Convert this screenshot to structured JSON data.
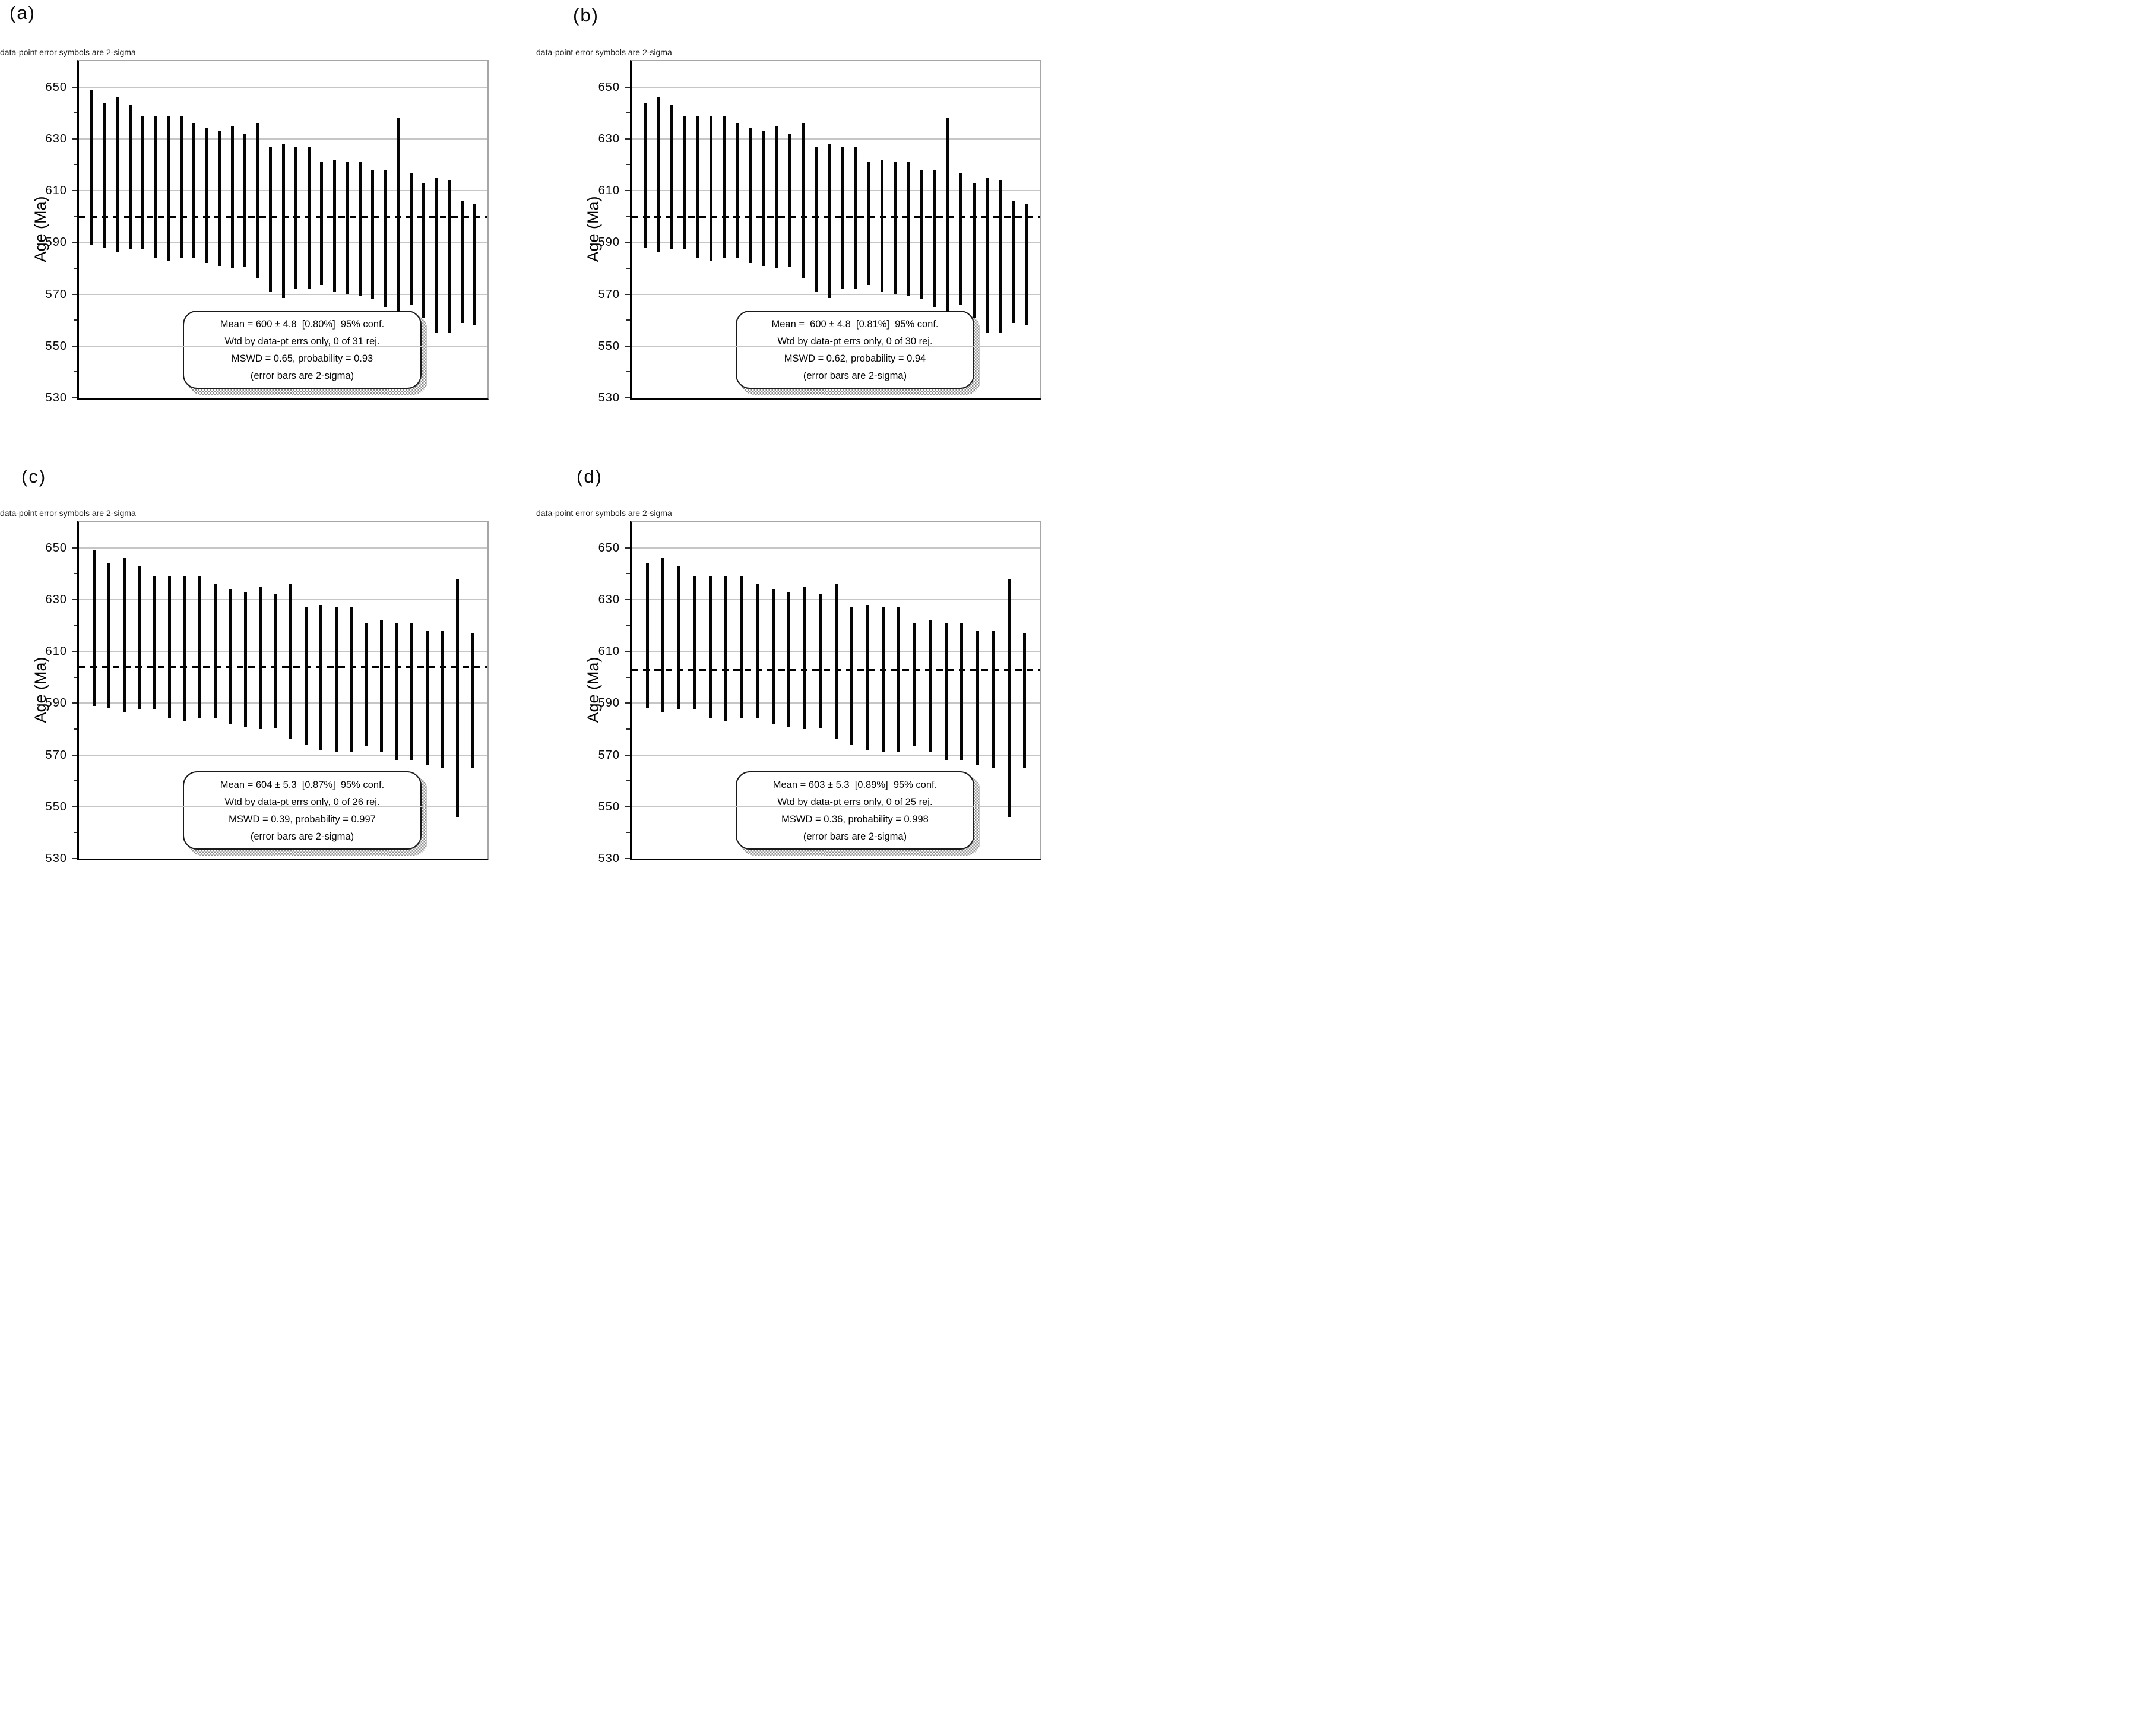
{
  "figure": {
    "annotation": "data-point error symbols are 2-sigma",
    "y_axis": {
      "title": "Age (Ma)",
      "range": [
        530,
        660
      ],
      "major_ticks": [
        650,
        630,
        610,
        590,
        570,
        550,
        530
      ],
      "minor_ticks": [
        640,
        620,
        600,
        580,
        560,
        540
      ]
    }
  },
  "panels": [
    {
      "label": "(a)",
      "stats": {
        "line1": "Mean = 600 ± 4.8  [0.80%]  95% conf.",
        "line2": "Wtd by data-pt errs only, 0 of 31 rej.",
        "line3": "MSWD = 0.65, probability = 0.93",
        "line4": "(error bars are 2-sigma)"
      }
    },
    {
      "label": "(b)",
      "stats": {
        "line1": "Mean =  600 ± 4.8  [0.81%]  95% conf.",
        "line2": "Wtd by data-pt errs only, 0 of 30 rej.",
        "line3": "MSWD = 0.62, probability = 0.94",
        "line4": "(error bars are 2-sigma)"
      }
    },
    {
      "label": "(c)",
      "stats": {
        "line1": "Mean = 604 ± 5.3  [0.87%]  95% conf.",
        "line2": "Wtd by data-pt errs only, 0 of 26 rej.",
        "line3": "MSWD = 0.39, probability = 0.997",
        "line4": "(error bars are 2-sigma)"
      }
    },
    {
      "label": "(d)",
      "stats": {
        "line1": "Mean = 603 ± 5.3  [0.89%]  95% conf.",
        "line2": "Wtd by data-pt errs only, 0 of 25 rej.",
        "line3": "MSWD = 0.36, probability = 0.998",
        "line4": "(error bars are 2-sigma)"
      }
    }
  ],
  "chart_data": [
    {
      "type": "bar",
      "subtype": "weighted-mean-age-2sigma-error-bars",
      "panel": "(a)",
      "ylabel": "Age (Ma)",
      "ylim": [
        530,
        660
      ],
      "yticks": [
        650,
        630,
        610,
        590,
        570,
        550,
        530
      ],
      "grid": true,
      "mean": 600,
      "mean_err": 4.8,
      "mean_err_pct": 0.8,
      "confidence": "95% conf.",
      "n": 31,
      "rejected": 0,
      "mswd": 0.65,
      "probability": 0.93,
      "bars_high_low": [
        [
          649,
          589
        ],
        [
          644,
          588
        ],
        [
          646,
          586.5
        ],
        [
          643,
          587.5
        ],
        [
          639,
          587.5
        ],
        [
          639,
          584
        ],
        [
          639,
          583
        ],
        [
          639,
          584
        ],
        [
          636,
          584
        ],
        [
          634,
          582
        ],
        [
          633,
          581
        ],
        [
          635,
          580
        ],
        [
          632,
          580.5
        ],
        [
          636,
          576
        ],
        [
          627,
          571
        ],
        [
          628,
          568.5
        ],
        [
          627,
          572
        ],
        [
          627,
          572
        ],
        [
          621,
          573.5
        ],
        [
          622,
          571
        ],
        [
          621,
          570
        ],
        [
          621,
          569.5
        ],
        [
          618,
          568
        ],
        [
          618,
          565
        ],
        [
          638,
          563
        ],
        [
          617,
          566
        ],
        [
          613,
          561
        ],
        [
          615,
          555
        ],
        [
          614,
          555
        ],
        [
          606,
          559
        ],
        [
          605,
          558
        ]
      ]
    },
    {
      "type": "bar",
      "subtype": "weighted-mean-age-2sigma-error-bars",
      "panel": "(b)",
      "ylabel": "Age (Ma)",
      "ylim": [
        530,
        660
      ],
      "yticks": [
        650,
        630,
        610,
        590,
        570,
        550,
        530
      ],
      "grid": true,
      "mean": 600,
      "mean_err": 4.8,
      "mean_err_pct": 0.81,
      "confidence": "95% conf.",
      "n": 30,
      "rejected": 0,
      "mswd": 0.62,
      "probability": 0.94,
      "bars_high_low": [
        [
          644,
          588
        ],
        [
          646,
          586.5
        ],
        [
          643,
          587.5
        ],
        [
          639,
          587.5
        ],
        [
          639,
          584
        ],
        [
          639,
          583
        ],
        [
          639,
          584
        ],
        [
          636,
          584
        ],
        [
          634,
          582
        ],
        [
          633,
          581
        ],
        [
          635,
          580
        ],
        [
          632,
          580.5
        ],
        [
          636,
          576
        ],
        [
          627,
          571
        ],
        [
          628,
          568.5
        ],
        [
          627,
          572
        ],
        [
          627,
          572
        ],
        [
          621,
          573.5
        ],
        [
          622,
          571
        ],
        [
          621,
          570
        ],
        [
          621,
          569.5
        ],
        [
          618,
          568
        ],
        [
          618,
          565
        ],
        [
          638,
          563
        ],
        [
          617,
          566
        ],
        [
          613,
          561
        ],
        [
          615,
          555
        ],
        [
          614,
          555
        ],
        [
          606,
          559
        ],
        [
          605,
          558
        ]
      ]
    },
    {
      "type": "bar",
      "subtype": "weighted-mean-age-2sigma-error-bars",
      "panel": "(c)",
      "ylabel": "Age (Ma)",
      "ylim": [
        530,
        660
      ],
      "yticks": [
        650,
        630,
        610,
        590,
        570,
        550,
        530
      ],
      "grid": true,
      "mean": 604,
      "mean_err": 5.3,
      "mean_err_pct": 0.87,
      "confidence": "95% conf.",
      "n": 26,
      "rejected": 0,
      "mswd": 0.39,
      "probability": 0.997,
      "bars_high_low": [
        [
          649,
          589
        ],
        [
          644,
          588
        ],
        [
          646,
          586.5
        ],
        [
          643,
          587.5
        ],
        [
          639,
          587.5
        ],
        [
          639,
          584
        ],
        [
          639,
          583
        ],
        [
          639,
          584
        ],
        [
          636,
          584
        ],
        [
          634,
          582
        ],
        [
          633,
          581
        ],
        [
          635,
          580
        ],
        [
          632,
          580.5
        ],
        [
          636,
          576
        ],
        [
          627,
          574
        ],
        [
          628,
          572
        ],
        [
          627,
          571
        ],
        [
          627,
          571
        ],
        [
          621,
          573.5
        ],
        [
          622,
          571
        ],
        [
          621,
          568
        ],
        [
          621,
          568
        ],
        [
          618,
          566
        ],
        [
          618,
          565
        ],
        [
          638,
          546
        ],
        [
          617,
          565
        ]
      ]
    },
    {
      "type": "bar",
      "subtype": "weighted-mean-age-2sigma-error-bars",
      "panel": "(d)",
      "ylabel": "Age (Ma)",
      "ylim": [
        530,
        660
      ],
      "yticks": [
        650,
        630,
        610,
        590,
        570,
        550,
        530
      ],
      "grid": true,
      "mean": 603,
      "mean_err": 5.3,
      "mean_err_pct": 0.89,
      "confidence": "95% conf.",
      "n": 25,
      "rejected": 0,
      "mswd": 0.36,
      "probability": 0.998,
      "bars_high_low": [
        [
          644,
          588
        ],
        [
          646,
          586.5
        ],
        [
          643,
          587.5
        ],
        [
          639,
          587.5
        ],
        [
          639,
          584
        ],
        [
          639,
          583
        ],
        [
          639,
          584
        ],
        [
          636,
          584
        ],
        [
          634,
          582
        ],
        [
          633,
          581
        ],
        [
          635,
          580
        ],
        [
          632,
          580.5
        ],
        [
          636,
          576
        ],
        [
          627,
          574
        ],
        [
          628,
          572
        ],
        [
          627,
          571
        ],
        [
          627,
          571
        ],
        [
          621,
          573.5
        ],
        [
          622,
          571
        ],
        [
          621,
          568
        ],
        [
          621,
          568
        ],
        [
          618,
          566
        ],
        [
          618,
          565
        ],
        [
          638,
          546
        ],
        [
          617,
          565
        ]
      ]
    }
  ]
}
